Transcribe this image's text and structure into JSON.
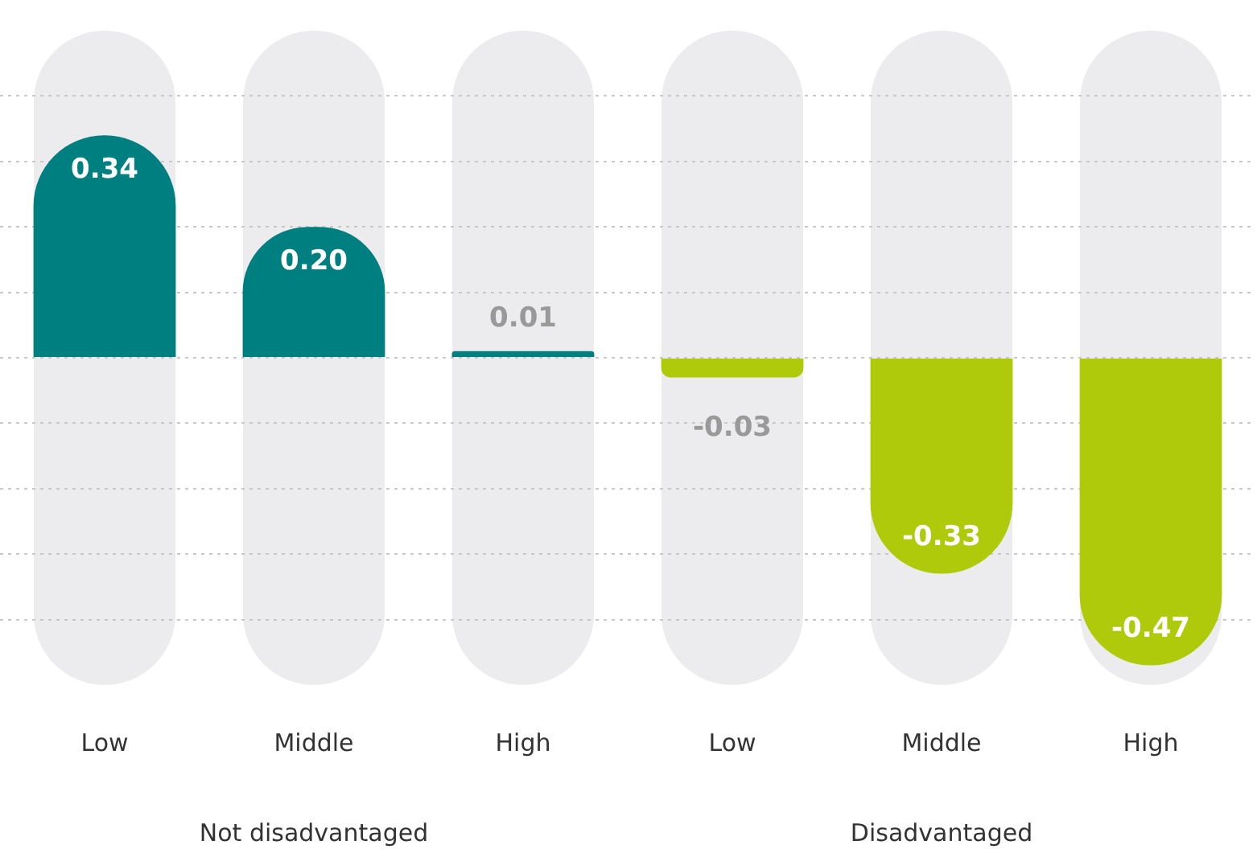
{
  "chart_data": [
    {
      "type": "bar",
      "xlabel": "Not disadvantaged",
      "categories": [
        "Low",
        "Middle",
        "High"
      ],
      "values": [
        0.34,
        0.2,
        0.01
      ],
      "value_labels": [
        "0.34",
        "0.20",
        "0.01"
      ],
      "color": "#007f80",
      "ylim": [
        -0.5,
        0.5
      ],
      "yticks": [
        -0.4,
        -0.3,
        -0.2,
        -0.1,
        0,
        0.1,
        0.2,
        0.3,
        0.4
      ],
      "grid": "y",
      "tick_labels": "x",
      "legend": false
    },
    {
      "type": "bar",
      "xlabel": "Disadvantaged",
      "categories": [
        "Low",
        "Middle",
        "High"
      ],
      "values": [
        -0.03,
        -0.33,
        -0.47
      ],
      "value_labels": [
        "-0.03",
        "-0.33",
        "-0.47"
      ],
      "color": "#afca0b",
      "ylim": [
        -0.5,
        0.5
      ],
      "yticks": [
        -0.4,
        -0.3,
        -0.2,
        -0.1,
        0,
        0.1,
        0.2,
        0.3,
        0.4
      ],
      "grid": "y",
      "tick_labels": "x",
      "legend": false
    }
  ]
}
